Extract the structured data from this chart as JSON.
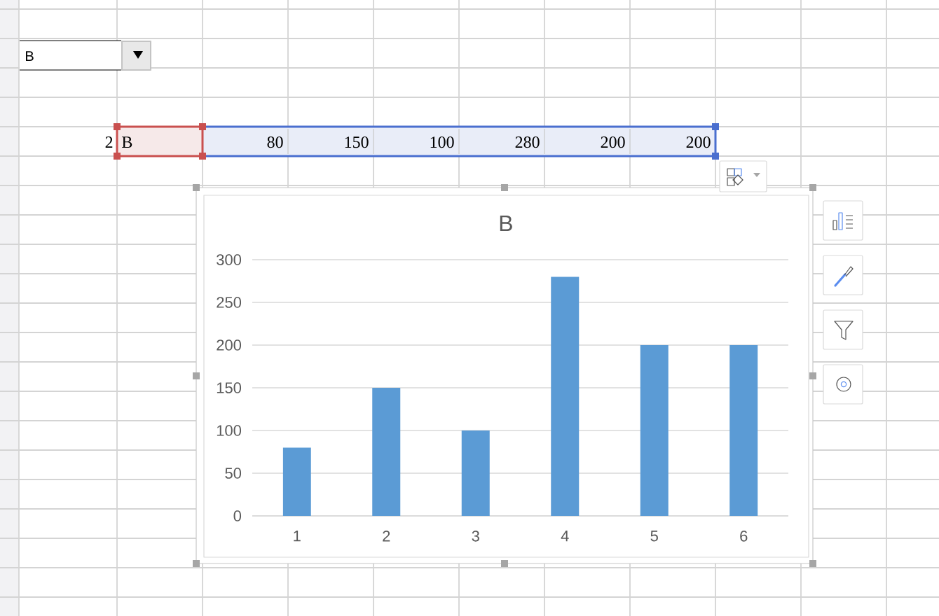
{
  "chart_data": {
    "type": "bar",
    "title": "B",
    "categories": [
      "1",
      "2",
      "3",
      "4",
      "5",
      "6"
    ],
    "values": [
      80,
      150,
      100,
      280,
      200,
      200
    ],
    "color": "#5b9bd5",
    "ylim": [
      0,
      300
    ],
    "yticks": [
      0,
      50,
      100,
      150,
      200,
      250,
      300
    ],
    "grid": "y",
    "annotations": [
      "B",
      "2",
      "B",
      "80",
      "150",
      "100",
      "280",
      "200",
      "200"
    ]
  }
}
